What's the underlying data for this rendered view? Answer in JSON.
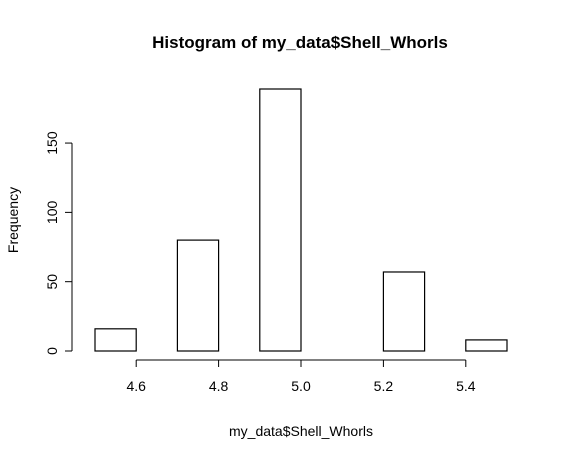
{
  "chart_data": {
    "type": "bar",
    "title": "Histogram of my_data$Shell_Whorls",
    "xlabel": "my_data$Shell_Whorls",
    "ylabel": "Frequency",
    "bins": [
      {
        "start": 4.5,
        "end": 4.6,
        "count": 16
      },
      {
        "start": 4.6,
        "end": 4.7,
        "count": 0
      },
      {
        "start": 4.7,
        "end": 4.8,
        "count": 80
      },
      {
        "start": 4.8,
        "end": 4.9,
        "count": 0
      },
      {
        "start": 4.9,
        "end": 5.0,
        "count": 189
      },
      {
        "start": 5.0,
        "end": 5.1,
        "count": 0
      },
      {
        "start": 5.1,
        "end": 5.2,
        "count": 0
      },
      {
        "start": 5.2,
        "end": 5.3,
        "count": 57
      },
      {
        "start": 5.3,
        "end": 5.4,
        "count": 0
      },
      {
        "start": 5.4,
        "end": 5.5,
        "count": 8
      }
    ],
    "xlim": [
      4.5,
      5.5
    ],
    "ylim": [
      0,
      189
    ],
    "x_ticks": [
      "4.6",
      "4.8",
      "5.0",
      "5.2",
      "5.4"
    ],
    "y_ticks": [
      "0",
      "50",
      "100",
      "150"
    ],
    "grid": false
  }
}
